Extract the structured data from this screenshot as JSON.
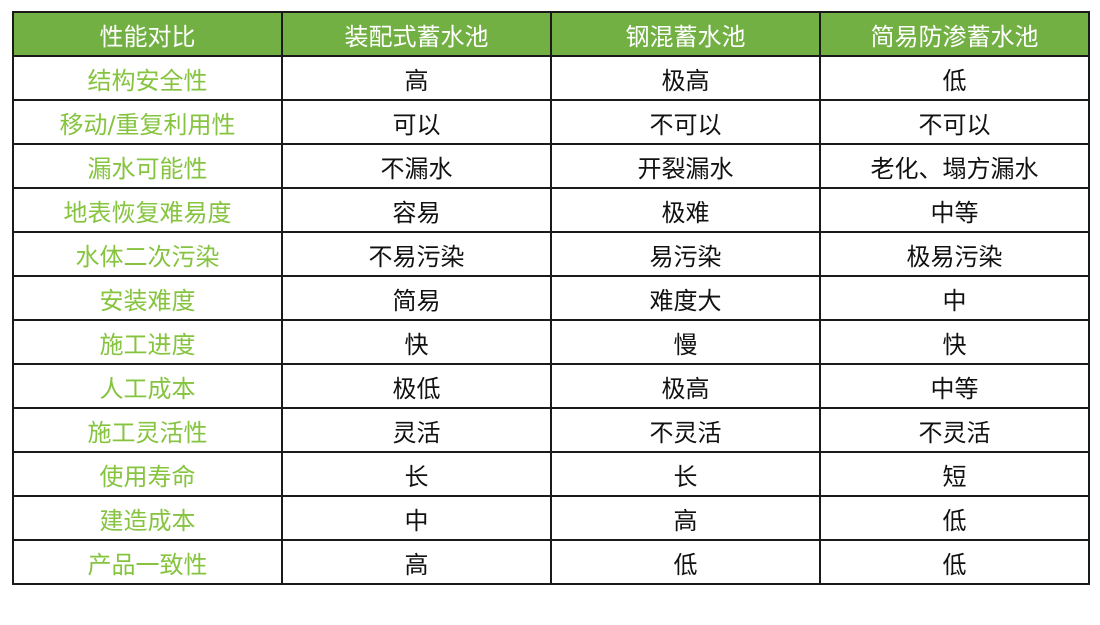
{
  "colors": {
    "header_bg": "#72b043",
    "header_text": "#ffffff",
    "label_text": "#86c440"
  },
  "headers": [
    "性能对比",
    "装配式蓄水池",
    "钢混蓄水池",
    "简易防渗蓄水池"
  ],
  "rows": [
    [
      "结构安全性",
      "高",
      "极高",
      "低"
    ],
    [
      "移动/重复利用性",
      "可以",
      "不可以",
      "不可以"
    ],
    [
      "漏水可能性",
      "不漏水",
      "开裂漏水",
      "老化、塌方漏水"
    ],
    [
      "地表恢复难易度",
      "容易",
      "极难",
      "中等"
    ],
    [
      "水体二次污染",
      "不易污染",
      "易污染",
      "极易污染"
    ],
    [
      "安装难度",
      "简易",
      "难度大",
      "中"
    ],
    [
      "施工进度",
      "快",
      "慢",
      "快"
    ],
    [
      "人工成本",
      "极低",
      "极高",
      "中等"
    ],
    [
      "施工灵活性",
      "灵活",
      "不灵活",
      "不灵活"
    ],
    [
      "使用寿命",
      "长",
      "长",
      "短"
    ],
    [
      "建造成本",
      "中",
      "高",
      "低"
    ],
    [
      "产品一致性",
      "高",
      "低",
      "低"
    ]
  ]
}
